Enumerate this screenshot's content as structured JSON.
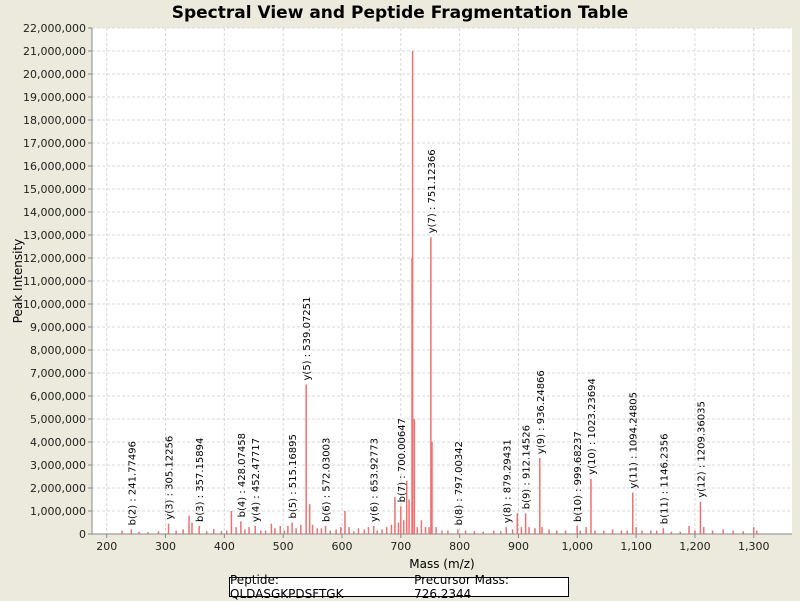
{
  "chart_data": {
    "type": "bar",
    "title": "Spectral View and Peptide Fragmentation Table",
    "xlabel": "Mass (m/z)",
    "ylabel": "Peak Intensity",
    "xlim": [
      175,
      1365
    ],
    "ylim": [
      0,
      22000000
    ],
    "x_ticks": [
      200,
      300,
      400,
      500,
      600,
      700,
      800,
      900,
      1000,
      1100,
      1200,
      1300
    ],
    "x_tick_labels": [
      "200",
      "300",
      "400",
      "500",
      "600",
      "700",
      "800",
      "900",
      "1,000",
      "1,100",
      "1,200",
      "1,300"
    ],
    "y_ticks": [
      0,
      1000000,
      2000000,
      3000000,
      4000000,
      5000000,
      6000000,
      7000000,
      8000000,
      9000000,
      10000000,
      11000000,
      12000000,
      13000000,
      14000000,
      15000000,
      16000000,
      17000000,
      18000000,
      19000000,
      20000000,
      21000000,
      22000000
    ],
    "y_tick_labels": [
      "0",
      "1,000,000",
      "2,000,000",
      "3,000,000",
      "4,000,000",
      "5,000,000",
      "6,000,000",
      "7,000,000",
      "8,000,000",
      "9,000,000",
      "10,000,000",
      "11,000,000",
      "12,000,000",
      "13,000,000",
      "14,000,000",
      "15,000,000",
      "16,000,000",
      "17,000,000",
      "18,000,000",
      "19,000,000",
      "20,000,000",
      "21,000,000",
      "22,000,000"
    ],
    "grid": true,
    "peak_color": "#f07070",
    "peaks": [
      [
        226,
        150000
      ],
      [
        241.77,
        200000
      ],
      [
        255,
        100000
      ],
      [
        270,
        80000
      ],
      [
        288,
        120000
      ],
      [
        305.12,
        450000
      ],
      [
        318,
        150000
      ],
      [
        330,
        200000
      ],
      [
        340,
        800000
      ],
      [
        345,
        500000
      ],
      [
        357.16,
        350000
      ],
      [
        370,
        120000
      ],
      [
        382,
        220000
      ],
      [
        395,
        120000
      ],
      [
        404,
        150000
      ],
      [
        412,
        1000000
      ],
      [
        420,
        300000
      ],
      [
        428.07,
        550000
      ],
      [
        435,
        200000
      ],
      [
        442,
        300000
      ],
      [
        452.48,
        350000
      ],
      [
        462,
        150000
      ],
      [
        470,
        150000
      ],
      [
        480,
        450000
      ],
      [
        486,
        250000
      ],
      [
        495,
        350000
      ],
      [
        502,
        150000
      ],
      [
        508,
        350000
      ],
      [
        515.17,
        500000
      ],
      [
        522,
        250000
      ],
      [
        530,
        400000
      ],
      [
        539.07,
        6500000
      ],
      [
        545,
        1300000
      ],
      [
        550,
        400000
      ],
      [
        558,
        250000
      ],
      [
        565,
        250000
      ],
      [
        572.03,
        350000
      ],
      [
        580,
        150000
      ],
      [
        590,
        200000
      ],
      [
        598,
        300000
      ],
      [
        605,
        1000000
      ],
      [
        612,
        300000
      ],
      [
        620,
        120000
      ],
      [
        628,
        250000
      ],
      [
        638,
        200000
      ],
      [
        645,
        300000
      ],
      [
        653.93,
        350000
      ],
      [
        660,
        150000
      ],
      [
        668,
        200000
      ],
      [
        676,
        300000
      ],
      [
        684,
        400000
      ],
      [
        690,
        1600000
      ],
      [
        696,
        500000
      ],
      [
        700.01,
        1200000
      ],
      [
        705,
        600000
      ],
      [
        710,
        2300000
      ],
      [
        714,
        1500000
      ],
      [
        719,
        12000000
      ],
      [
        720,
        21000000
      ],
      [
        723,
        5000000
      ],
      [
        728,
        300000
      ],
      [
        735,
        600000
      ],
      [
        742,
        300000
      ],
      [
        748,
        300000
      ],
      [
        751.12,
        12900000
      ],
      [
        753,
        4000000
      ],
      [
        760,
        300000
      ],
      [
        770,
        150000
      ],
      [
        780,
        150000
      ],
      [
        797.0,
        200000
      ],
      [
        810,
        150000
      ],
      [
        825,
        120000
      ],
      [
        840,
        100000
      ],
      [
        858,
        150000
      ],
      [
        870,
        120000
      ],
      [
        879.29,
        300000
      ],
      [
        890,
        200000
      ],
      [
        898,
        900000
      ],
      [
        905,
        300000
      ],
      [
        912.15,
        900000
      ],
      [
        918,
        300000
      ],
      [
        928,
        250000
      ],
      [
        936.25,
        3300000
      ],
      [
        940,
        300000
      ],
      [
        952,
        200000
      ],
      [
        965,
        150000
      ],
      [
        980,
        150000
      ],
      [
        999.68,
        350000
      ],
      [
        1005,
        150000
      ],
      [
        1015,
        300000
      ],
      [
        1023.24,
        2400000
      ],
      [
        1030,
        150000
      ],
      [
        1045,
        150000
      ],
      [
        1060,
        200000
      ],
      [
        1075,
        150000
      ],
      [
        1085,
        150000
      ],
      [
        1094.25,
        1800000
      ],
      [
        1100,
        300000
      ],
      [
        1110,
        150000
      ],
      [
        1125,
        150000
      ],
      [
        1135,
        150000
      ],
      [
        1146.24,
        250000
      ],
      [
        1160,
        100000
      ],
      [
        1175,
        100000
      ],
      [
        1190,
        350000
      ],
      [
        1200,
        150000
      ],
      [
        1209.36,
        1400000
      ],
      [
        1215,
        300000
      ],
      [
        1230,
        150000
      ],
      [
        1248,
        200000
      ],
      [
        1265,
        150000
      ],
      [
        1282,
        120000
      ],
      [
        1300,
        300000
      ],
      [
        1305,
        150000
      ]
    ],
    "annotations": [
      {
        "x": 241.77496,
        "y": 200000,
        "text": "b(2) : 241.77496"
      },
      {
        "x": 305.12256,
        "y": 450000,
        "text": "y(3) : 305.12256"
      },
      {
        "x": 357.15894,
        "y": 350000,
        "text": "b(3) : 357.15894"
      },
      {
        "x": 428.07458,
        "y": 550000,
        "text": "b(4) : 428.07458"
      },
      {
        "x": 452.47717,
        "y": 350000,
        "text": "y(4) : 452.47717"
      },
      {
        "x": 515.16895,
        "y": 500000,
        "text": "b(5) : 515.16895"
      },
      {
        "x": 539.07251,
        "y": 6500000,
        "text": "y(5) : 539.07251"
      },
      {
        "x": 572.03003,
        "y": 350000,
        "text": "b(6) : 572.03003"
      },
      {
        "x": 653.92773,
        "y": 350000,
        "text": "y(6) : 653.92773"
      },
      {
        "x": 700.00647,
        "y": 1200000,
        "text": "b(7) : 700.00647"
      },
      {
        "x": 751.12366,
        "y": 12900000,
        "text": "y(7) : 751.12366"
      },
      {
        "x": 797.00342,
        "y": 200000,
        "text": "b(8) : 797.00342"
      },
      {
        "x": 879.29431,
        "y": 300000,
        "text": "y(8) : 879.29431"
      },
      {
        "x": 912.14526,
        "y": 900000,
        "text": "b(9) : 912.14526"
      },
      {
        "x": 936.24866,
        "y": 3300000,
        "text": "y(9) : 936.24866"
      },
      {
        "x": 999.68237,
        "y": 350000,
        "text": "b(10) : 999.68237"
      },
      {
        "x": 1023.23694,
        "y": 2400000,
        "text": "y(10) : 1023.23694"
      },
      {
        "x": 1094.24805,
        "y": 1800000,
        "text": "y(11) : 1094.24805"
      },
      {
        "x": 1146.2356,
        "y": 250000,
        "text": "b(11) : 1146.2356"
      },
      {
        "x": 1209.36035,
        "y": 1400000,
        "text": "y(12) : 1209.36035"
      }
    ]
  },
  "info": {
    "peptide": "Peptide: QLDASGKPDSFTGK",
    "precursor": "Precursor Mass: 726.2344"
  }
}
